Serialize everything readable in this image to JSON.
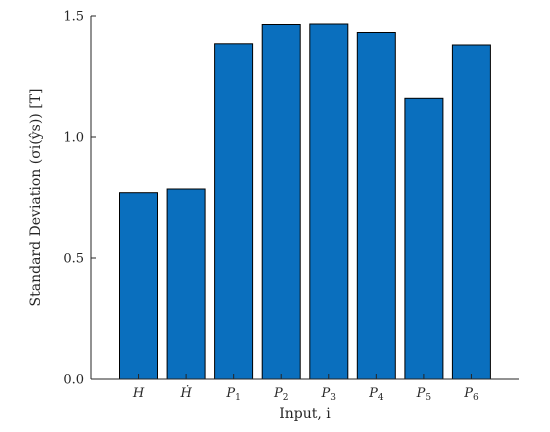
{
  "chart_data": {
    "type": "bar",
    "categories": [
      "H",
      "Ḣ",
      "P1",
      "P2",
      "P3",
      "P4",
      "P5",
      "P6"
    ],
    "category_labels": [
      {
        "base": "H",
        "sub": ""
      },
      {
        "base": "Ḣ",
        "sub": ""
      },
      {
        "base": "P",
        "sub": "1"
      },
      {
        "base": "P",
        "sub": "2"
      },
      {
        "base": "P",
        "sub": "3"
      },
      {
        "base": "P",
        "sub": "4"
      },
      {
        "base": "P",
        "sub": "5"
      },
      {
        "base": "P",
        "sub": "6"
      }
    ],
    "values": [
      0.77,
      0.785,
      1.385,
      1.465,
      1.467,
      1.432,
      1.16,
      1.38
    ],
    "xlabel": "Input, i",
    "ylabel": "Standard Deviation (σi(ŷs)) [T]",
    "ylim": [
      0,
      1.5
    ],
    "yticks": [
      "0.0",
      "0.5",
      "1.0",
      "1.5"
    ],
    "ytick_values": [
      0,
      0.5,
      1.0,
      1.5
    ],
    "grid": false,
    "colors": {
      "bar": "#0a6fbe",
      "bar_edge": "#000000",
      "axis": "#262626"
    }
  }
}
